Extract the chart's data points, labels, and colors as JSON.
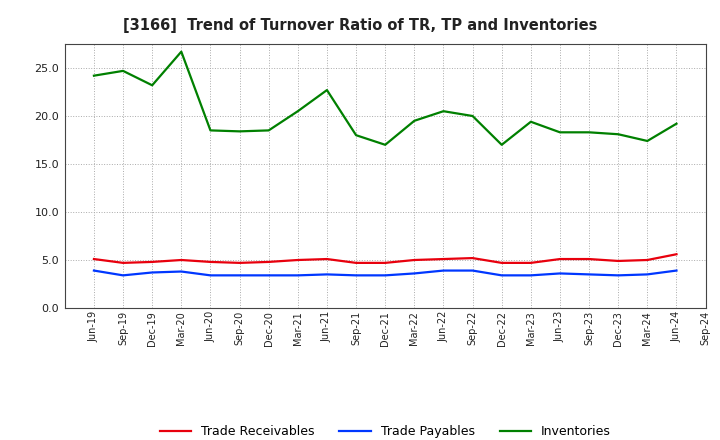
{
  "title": "[3166]  Trend of Turnover Ratio of TR, TP and Inventories",
  "x_labels": [
    "Jun-19",
    "Sep-19",
    "Dec-19",
    "Mar-20",
    "Jun-20",
    "Sep-20",
    "Dec-20",
    "Mar-21",
    "Jun-21",
    "Sep-21",
    "Dec-21",
    "Mar-22",
    "Jun-22",
    "Sep-22",
    "Dec-22",
    "Mar-23",
    "Jun-23",
    "Sep-23",
    "Dec-23",
    "Mar-24",
    "Jun-24",
    "Sep-24"
  ],
  "trade_receivables": [
    5.1,
    4.7,
    4.8,
    5.0,
    4.8,
    4.7,
    4.8,
    5.0,
    5.1,
    4.7,
    4.7,
    5.0,
    5.1,
    5.2,
    4.7,
    4.7,
    5.1,
    5.1,
    4.9,
    5.0,
    5.6,
    null
  ],
  "trade_payables": [
    3.9,
    3.4,
    3.7,
    3.8,
    3.4,
    3.4,
    3.4,
    3.4,
    3.5,
    3.4,
    3.4,
    3.6,
    3.9,
    3.9,
    3.4,
    3.4,
    3.6,
    3.5,
    3.4,
    3.5,
    3.9,
    null
  ],
  "inventories": [
    24.2,
    24.7,
    23.2,
    26.7,
    18.5,
    18.4,
    18.5,
    20.5,
    22.7,
    18.0,
    17.0,
    19.5,
    20.5,
    20.0,
    17.0,
    19.4,
    18.3,
    18.3,
    18.1,
    17.4,
    19.2,
    null
  ],
  "tr_color": "#e8000d",
  "tp_color": "#0037ff",
  "inv_color": "#008000",
  "ylim": [
    0.0,
    27.5
  ],
  "yticks": [
    0.0,
    5.0,
    10.0,
    15.0,
    20.0,
    25.0
  ],
  "background_color": "#ffffff",
  "grid_color": "#aaaaaa",
  "legend_labels": [
    "Trade Receivables",
    "Trade Payables",
    "Inventories"
  ]
}
